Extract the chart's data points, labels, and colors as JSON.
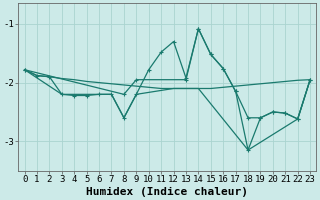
{
  "bg_color": "#cceae8",
  "line_color": "#1a7a6e",
  "grid_color": "#aad4d0",
  "xlabel": "Humidex (Indice chaleur)",
  "xlabel_fontsize": 8,
  "tick_fontsize": 6.5,
  "ylim": [
    -3.5,
    -0.65
  ],
  "xlim": [
    -0.5,
    23.5
  ],
  "yticks": [
    -3,
    -2,
    -1
  ],
  "xticks": [
    0,
    1,
    2,
    3,
    4,
    5,
    6,
    7,
    8,
    9,
    10,
    11,
    12,
    13,
    14,
    15,
    16,
    17,
    18,
    19,
    20,
    21,
    22,
    23
  ],
  "series": [
    {
      "points": [
        [
          0,
          -1.78
        ],
        [
          1,
          -1.88
        ],
        [
          2,
          -1.9
        ],
        [
          3,
          -1.93
        ],
        [
          4,
          -1.95
        ],
        [
          5,
          -1.98
        ],
        [
          6,
          -2.0
        ],
        [
          7,
          -2.02
        ],
        [
          8,
          -2.04
        ],
        [
          9,
          -2.06
        ],
        [
          10,
          -2.08
        ],
        [
          11,
          -2.1
        ],
        [
          12,
          -2.1
        ],
        [
          13,
          -2.1
        ],
        [
          14,
          -2.1
        ],
        [
          15,
          -2.1
        ],
        [
          16,
          -2.08
        ],
        [
          17,
          -2.06
        ],
        [
          18,
          -2.04
        ],
        [
          19,
          -2.02
        ],
        [
          20,
          -2.0
        ],
        [
          21,
          -1.98
        ],
        [
          22,
          -1.96
        ],
        [
          23,
          -1.95
        ]
      ],
      "linewidth": 0.9,
      "marker": false
    },
    {
      "points": [
        [
          0,
          -1.78
        ],
        [
          1,
          -1.88
        ],
        [
          2,
          -1.9
        ],
        [
          3,
          -2.2
        ],
        [
          4,
          -2.22
        ],
        [
          5,
          -2.22
        ],
        [
          6,
          -2.2
        ],
        [
          7,
          -2.2
        ],
        [
          8,
          -2.6
        ],
        [
          9,
          -2.2
        ],
        [
          10,
          -1.78
        ],
        [
          11,
          -1.48
        ],
        [
          12,
          -1.3
        ],
        [
          13,
          -1.92
        ],
        [
          14,
          -1.08
        ],
        [
          15,
          -1.52
        ],
        [
          16,
          -1.76
        ],
        [
          17,
          -2.15
        ],
        [
          18,
          -2.6
        ],
        [
          19,
          -2.6
        ],
        [
          20,
          -2.5
        ],
        [
          21,
          -2.52
        ],
        [
          22,
          -2.62
        ],
        [
          23,
          -1.95
        ]
      ],
      "linewidth": 0.9,
      "marker": true
    },
    {
      "points": [
        [
          0,
          -1.78
        ],
        [
          3,
          -2.2
        ],
        [
          7,
          -2.2
        ],
        [
          8,
          -2.6
        ],
        [
          9,
          -2.2
        ],
        [
          12,
          -2.1
        ],
        [
          14,
          -2.1
        ],
        [
          18,
          -3.15
        ],
        [
          22,
          -2.62
        ],
        [
          23,
          -1.95
        ]
      ],
      "linewidth": 0.9,
      "marker": false
    },
    {
      "points": [
        [
          0,
          -1.78
        ],
        [
          8,
          -2.2
        ],
        [
          9,
          -1.95
        ],
        [
          13,
          -1.95
        ],
        [
          14,
          -1.08
        ],
        [
          15,
          -1.52
        ],
        [
          16,
          -1.76
        ],
        [
          17,
          -2.15
        ],
        [
          18,
          -3.15
        ],
        [
          19,
          -2.6
        ],
        [
          20,
          -2.5
        ],
        [
          21,
          -2.52
        ],
        [
          22,
          -2.62
        ],
        [
          23,
          -1.95
        ]
      ],
      "linewidth": 0.9,
      "marker": true
    }
  ]
}
